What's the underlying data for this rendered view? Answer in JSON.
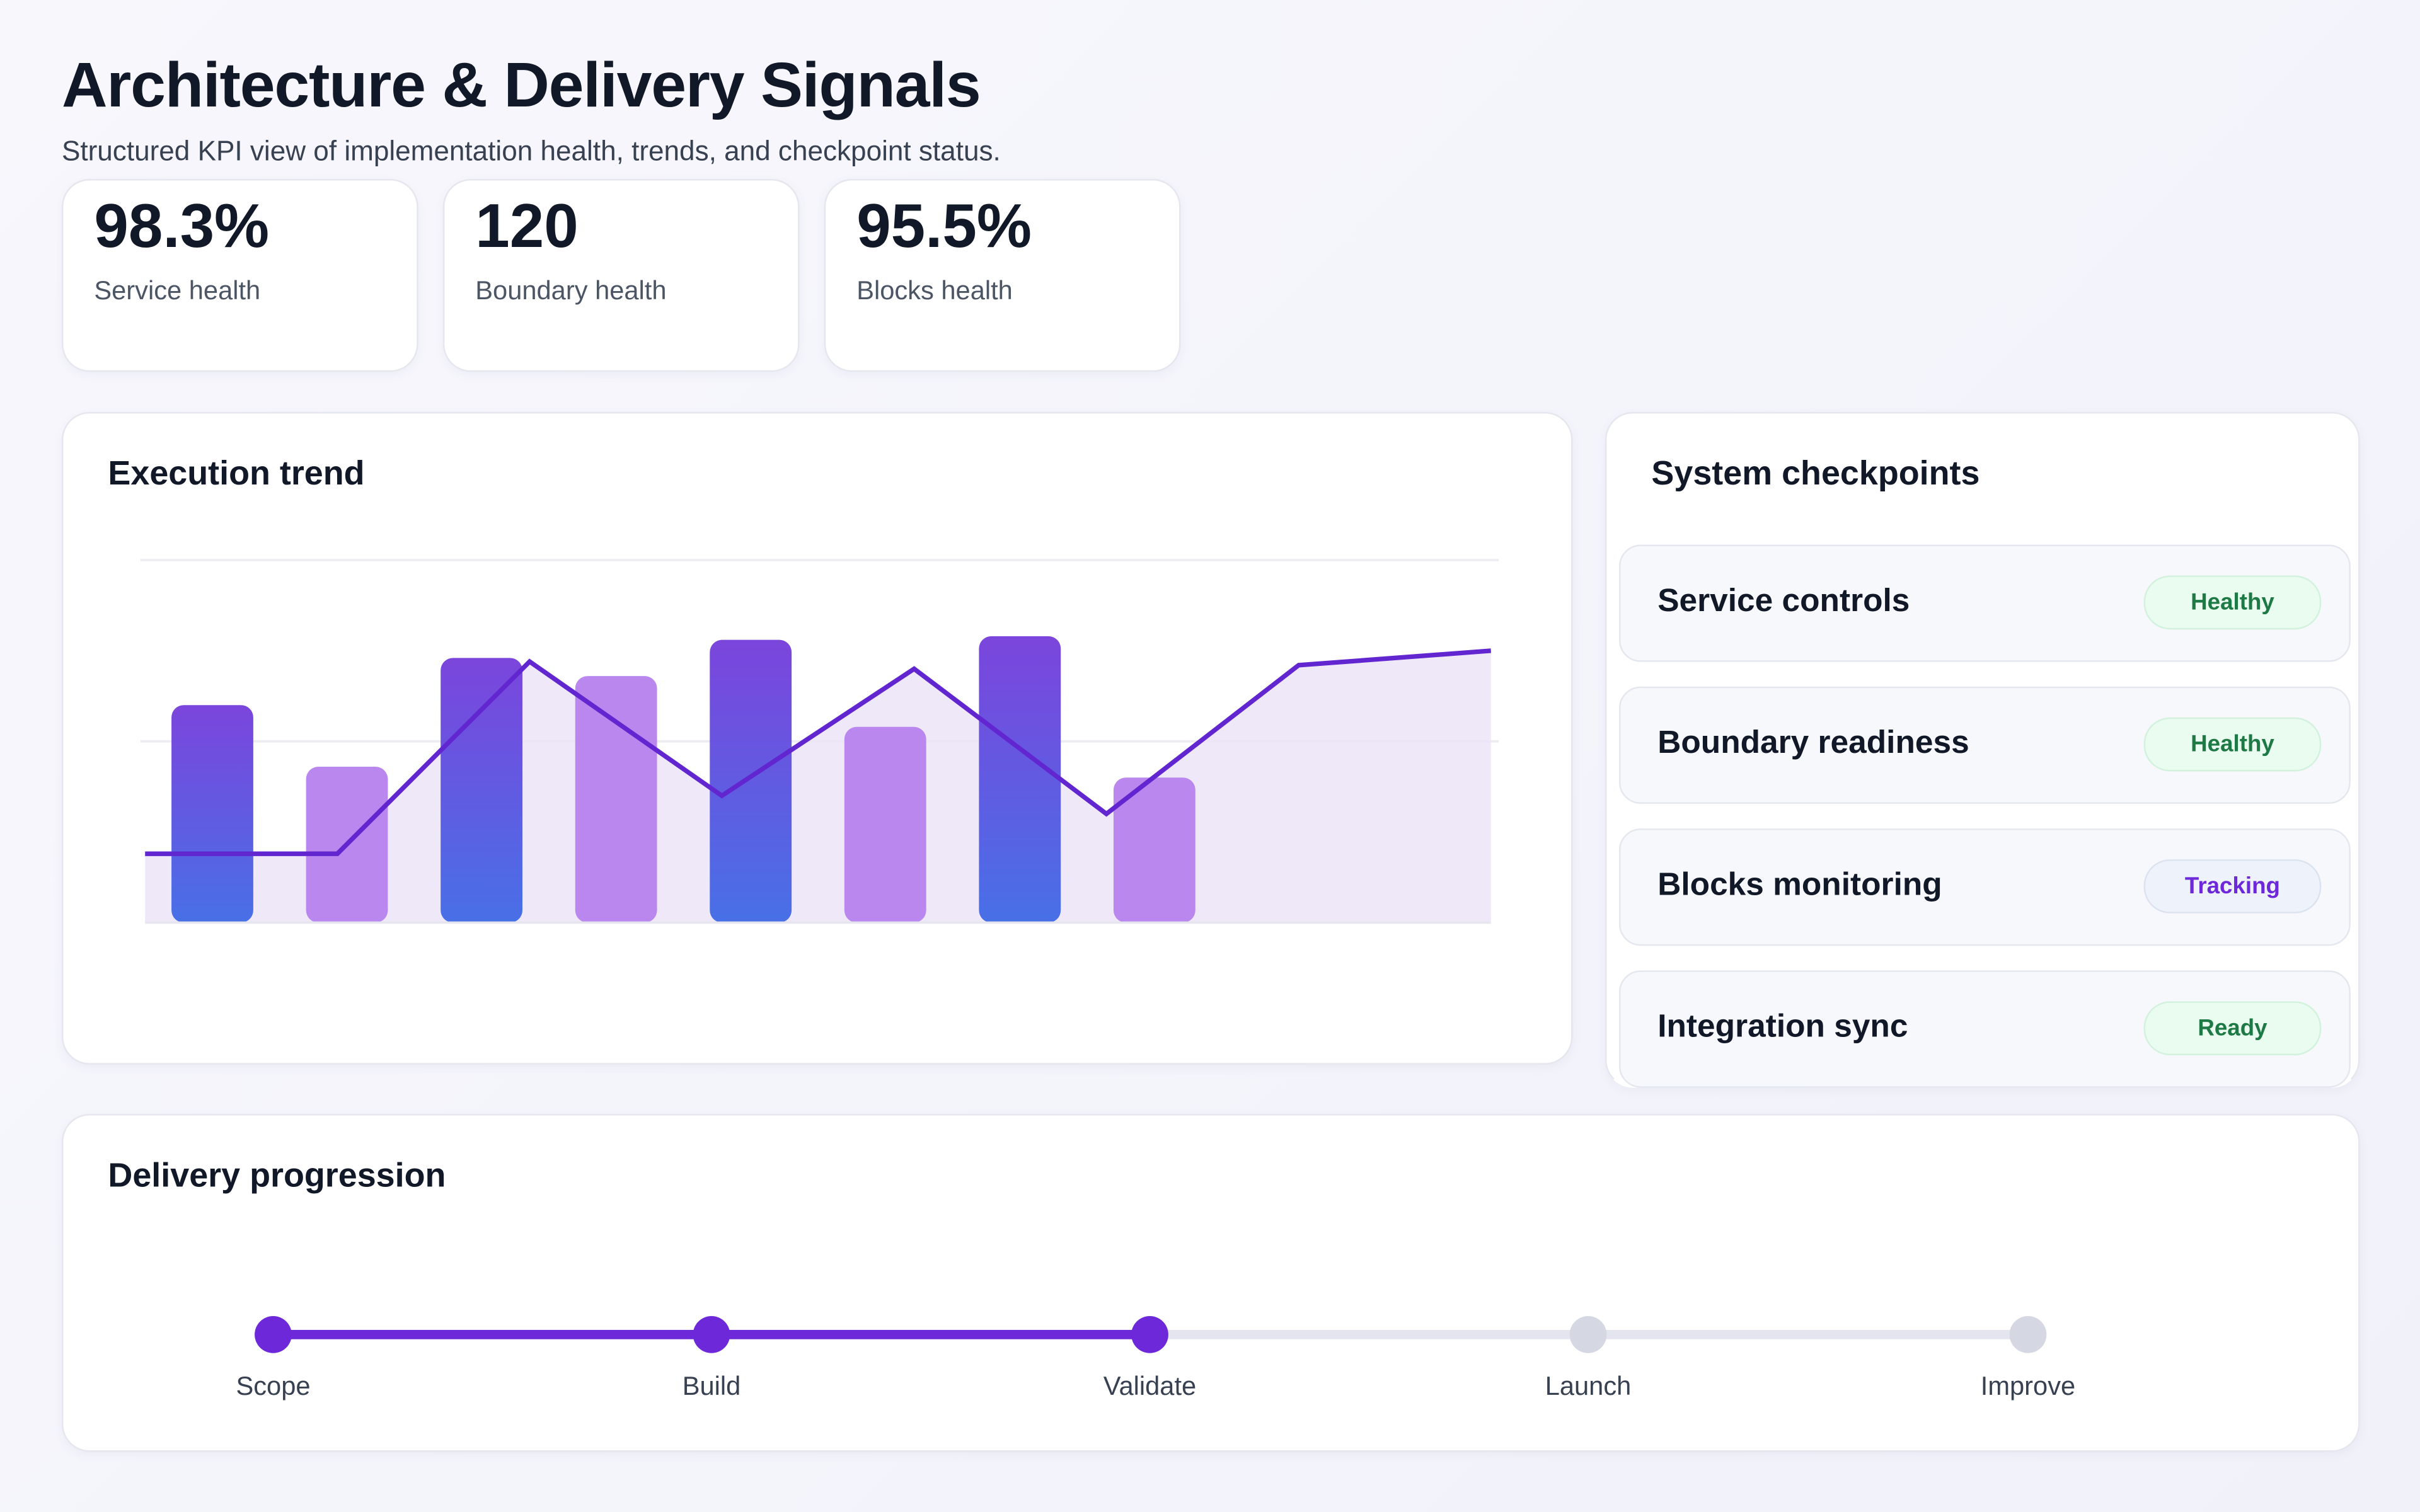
{
  "header": {
    "title": "Architecture & Delivery Signals",
    "subtitle": "Structured KPI view of implementation health, trends, and checkpoint status."
  },
  "kpis": [
    {
      "value": "98.3%",
      "label": "Service health"
    },
    {
      "value": "120",
      "label": "Boundary health"
    },
    {
      "value": "95.5%",
      "label": "Blocks health"
    }
  ],
  "trend": {
    "title": "Execution trend"
  },
  "chart_data": {
    "type": "bar",
    "title": "Execution trend",
    "xlabel": "",
    "ylabel": "",
    "ylim": [
      0,
      100
    ],
    "grid": true,
    "bar_slots": 10,
    "bars": [
      60,
      43,
      73,
      68,
      78,
      54,
      79,
      40
    ],
    "bar_colors": [
      "gradient",
      "light",
      "gradient",
      "light",
      "gradient",
      "light",
      "gradient",
      "light"
    ],
    "line": [
      19,
      19,
      72,
      35,
      70,
      30,
      71,
      75
    ],
    "colors": {
      "bar_top": "#7b45dc",
      "bar_bottom": "#4870e6",
      "bar_light": "#b987ee",
      "line": "#6226d0",
      "area": "#ebe4f8"
    }
  },
  "checkpoints": {
    "title": "System checkpoints",
    "items": [
      {
        "name": "Service controls",
        "status": "Healthy",
        "kind": "ok"
      },
      {
        "name": "Boundary readiness",
        "status": "Healthy",
        "kind": "ok"
      },
      {
        "name": "Blocks monitoring",
        "status": "Tracking",
        "kind": "track"
      },
      {
        "name": "Integration sync",
        "status": "Ready",
        "kind": "ok"
      }
    ]
  },
  "delivery": {
    "title": "Delivery progression",
    "steps": [
      "Scope",
      "Build",
      "Validate",
      "Launch",
      "Improve"
    ],
    "completed_steps": 3,
    "colors": {
      "done": "#6d28d9",
      "pending": "#d5d8e2"
    }
  }
}
